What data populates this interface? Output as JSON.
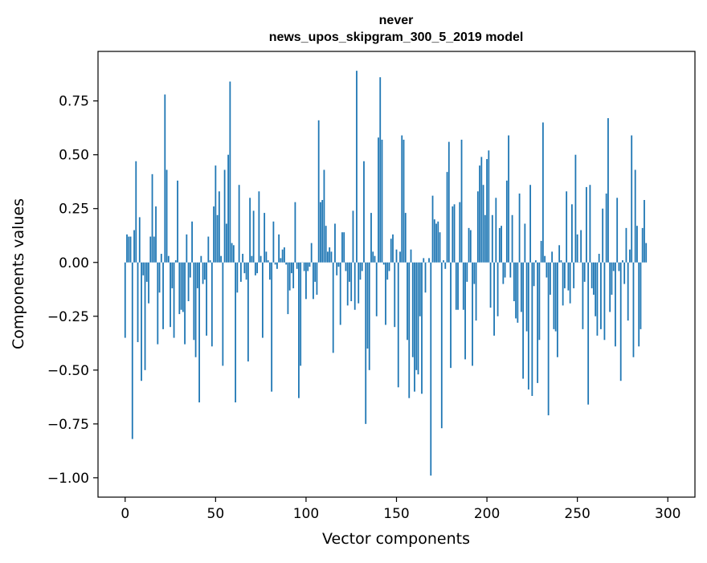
{
  "chart_data": {
    "type": "bar",
    "title_line1": "never",
    "title_line2": "news_upos_skipgram_300_5_2019 model",
    "xlabel": "Vector components",
    "ylabel": "Components values",
    "xlim": [
      -15,
      315
    ],
    "ylim": [
      -1.09,
      0.98
    ],
    "x_ticks": [
      0,
      50,
      100,
      150,
      200,
      250,
      300
    ],
    "y_ticks": [
      -1.0,
      -0.75,
      -0.5,
      -0.25,
      0.0,
      0.25,
      0.5,
      0.75
    ],
    "x_tick_labels": [
      "0",
      "50",
      "100",
      "150",
      "200",
      "250",
      "300"
    ],
    "y_tick_labels": [
      "−1.00",
      "−0.75",
      "−0.50",
      "−0.25",
      "0.00",
      "0.25",
      "0.50",
      "0.75"
    ],
    "bar_color": "#1f77b4",
    "grid": false,
    "values": [
      -0.35,
      0.13,
      0.12,
      0.12,
      -0.82,
      0.15,
      0.47,
      -0.37,
      0.21,
      -0.55,
      -0.06,
      -0.5,
      -0.09,
      -0.19,
      0.12,
      0.41,
      0.12,
      0.26,
      -0.38,
      -0.14,
      0.04,
      -0.31,
      0.78,
      0.43,
      0.03,
      -0.3,
      -0.12,
      -0.35,
      0.01,
      0.38,
      -0.24,
      -0.22,
      -0.23,
      -0.38,
      0.13,
      -0.18,
      -0.07,
      0.19,
      -0.36,
      -0.44,
      -0.12,
      -0.65,
      0.03,
      -0.1,
      -0.08,
      -0.34,
      0.12,
      0.01,
      -0.39,
      0.26,
      0.45,
      0.22,
      0.33,
      0.03,
      -0.48,
      0.43,
      0.18,
      0.5,
      0.84,
      0.09,
      0.08,
      -0.65,
      -0.14,
      0.36,
      -0.09,
      0.04,
      -0.05,
      -0.08,
      -0.46,
      0.3,
      0.03,
      0.24,
      -0.06,
      -0.05,
      0.33,
      0.03,
      -0.35,
      0.23,
      0.05,
      0.01,
      -0.08,
      -0.6,
      0.19,
      -0.01,
      -0.03,
      0.13,
      0.02,
      0.06,
      0.07,
      -0.01,
      -0.24,
      -0.13,
      -0.05,
      -0.12,
      0.28,
      -0.03,
      -0.63,
      -0.48,
      0.0,
      -0.04,
      -0.17,
      -0.04,
      -0.02,
      0.09,
      -0.17,
      -0.09,
      -0.15,
      0.66,
      0.28,
      0.29,
      0.43,
      0.17,
      0.05,
      0.07,
      0.05,
      -0.42,
      0.18,
      -0.06,
      -0.02,
      -0.29,
      0.14,
      0.14,
      -0.04,
      -0.2,
      -0.09,
      -0.18,
      0.24,
      -0.22,
      0.89,
      -0.19,
      -0.08,
      -0.04,
      0.47,
      -0.75,
      -0.4,
      -0.5,
      0.23,
      0.05,
      0.03,
      -0.25,
      0.58,
      0.86,
      0.57,
      -0.01,
      -0.29,
      -0.08,
      -0.04,
      0.11,
      0.13,
      -0.3,
      0.06,
      -0.58,
      0.05,
      0.59,
      0.57,
      0.23,
      -0.36,
      -0.63,
      0.06,
      -0.44,
      -0.6,
      -0.5,
      -0.52,
      -0.25,
      -0.61,
      0.02,
      -0.14,
      0.0,
      0.02,
      -0.99,
      0.31,
      0.2,
      0.18,
      0.19,
      0.14,
      -0.77,
      0.01,
      -0.03,
      0.42,
      0.56,
      -0.49,
      0.26,
      0.27,
      -0.22,
      -0.22,
      0.28,
      0.57,
      -0.22,
      -0.45,
      -0.09,
      0.16,
      0.15,
      -0.48,
      -0.1,
      -0.27,
      0.33,
      0.45,
      0.49,
      0.36,
      0.22,
      0.48,
      0.52,
      -0.21,
      0.22,
      -0.34,
      0.3,
      -0.25,
      0.16,
      0.17,
      -0.1,
      -0.07,
      0.38,
      0.59,
      -0.07,
      0.22,
      -0.18,
      -0.26,
      -0.28,
      0.32,
      -0.23,
      -0.54,
      0.18,
      -0.32,
      -0.59,
      0.36,
      -0.62,
      -0.11,
      0.01,
      -0.56,
      -0.36,
      0.1,
      0.65,
      0.03,
      -0.07,
      -0.71,
      -0.15,
      0.05,
      -0.31,
      -0.32,
      -0.44,
      0.08,
      0.01,
      -0.2,
      -0.12,
      0.33,
      -0.13,
      -0.19,
      0.27,
      -0.12,
      0.5,
      0.13,
      0.0,
      0.15,
      -0.31,
      -0.09,
      0.35,
      -0.66,
      0.36,
      -0.12,
      -0.15,
      -0.25,
      -0.34,
      0.04,
      -0.31,
      0.25,
      -0.36,
      0.32,
      0.67,
      -0.23,
      -0.15,
      -0.04,
      -0.39,
      0.3,
      -0.04,
      -0.55,
      0.01,
      -0.1,
      0.16,
      -0.27,
      0.06,
      0.59,
      -0.44,
      0.43,
      0.17,
      -0.39,
      -0.31,
      0.16,
      0.29,
      0.09
    ]
  }
}
